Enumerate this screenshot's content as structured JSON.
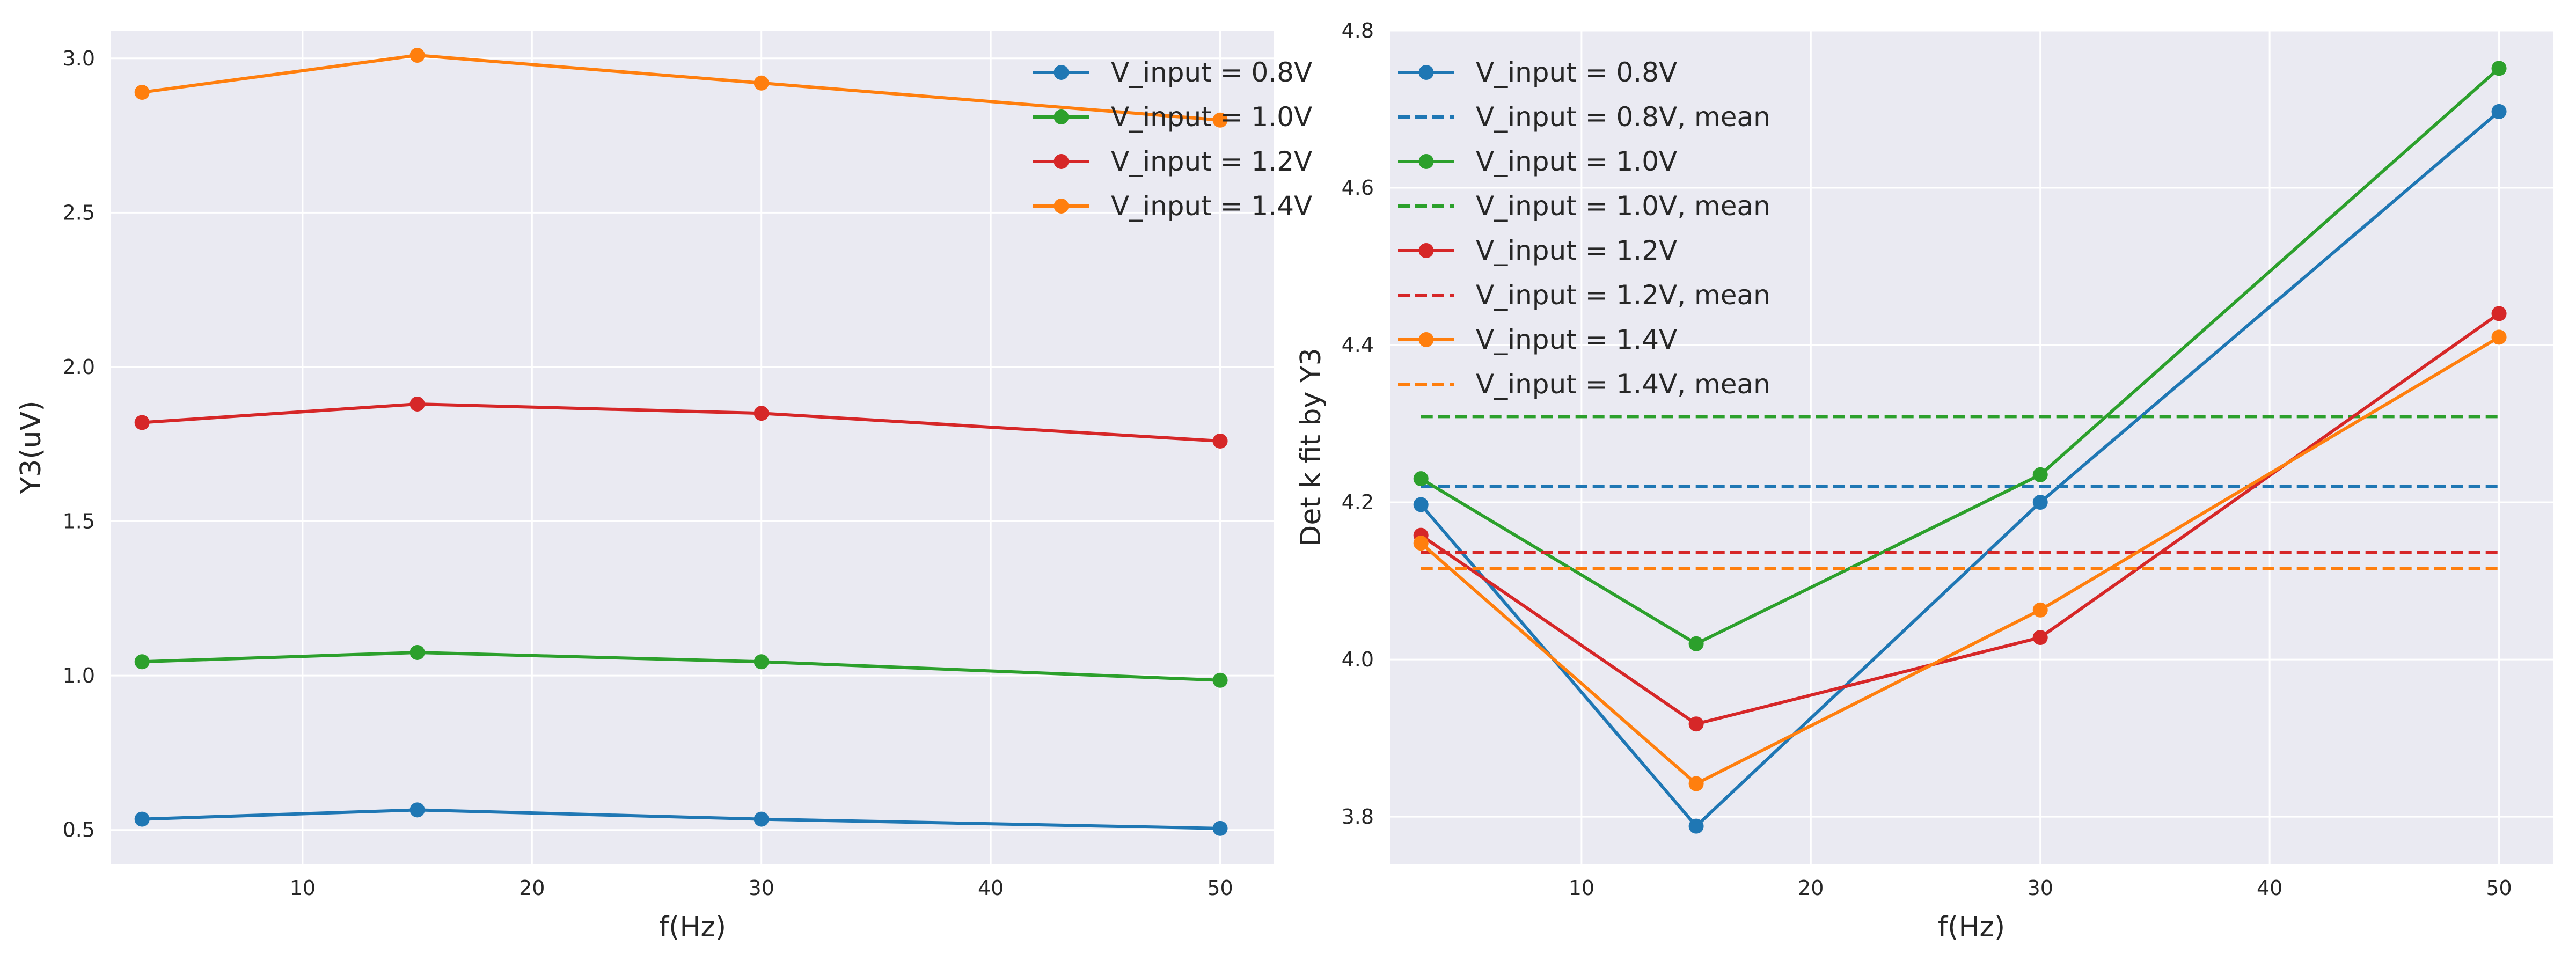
{
  "chart_data": [
    {
      "type": "line",
      "xlabel": "f(Hz)",
      "ylabel": "Y3(uV)",
      "xlim": [
        1.65,
        52.35
      ],
      "ylim": [
        0.39,
        3.09
      ],
      "xticks": [
        10,
        20,
        30,
        40,
        50
      ],
      "yticks": [
        0.5,
        1.0,
        1.5,
        2.0,
        2.5,
        3.0
      ],
      "xtick_labels": [
        "10",
        "20",
        "30",
        "40",
        "50"
      ],
      "ytick_labels": [
        "0.5",
        "1.0",
        "1.5",
        "2.0",
        "2.5",
        "3.0"
      ],
      "grid": true,
      "legend_placement": "top-right",
      "x": [
        3,
        15,
        30,
        50
      ],
      "series": [
        {
          "name": "V_input = 0.8V",
          "color": "#1f77b4",
          "style": "solid-marker",
          "values": [
            0.535,
            0.565,
            0.535,
            0.505
          ]
        },
        {
          "name": "V_input = 1.0V",
          "color": "#2ca02c",
          "style": "solid-marker",
          "values": [
            1.045,
            1.075,
            1.045,
            0.985
          ]
        },
        {
          "name": "V_input = 1.2V",
          "color": "#d62728",
          "style": "solid-marker",
          "values": [
            1.82,
            1.88,
            1.85,
            1.76
          ]
        },
        {
          "name": "V_input = 1.4V",
          "color": "#ff7f0e",
          "style": "solid-marker",
          "values": [
            2.89,
            3.01,
            2.92,
            2.8
          ]
        }
      ]
    },
    {
      "type": "line",
      "xlabel": "f(Hz)",
      "ylabel": "Det k fit by Y3",
      "xlim": [
        1.65,
        52.35
      ],
      "ylim": [
        3.74,
        4.8
      ],
      "xticks": [
        10,
        20,
        30,
        40,
        50
      ],
      "yticks": [
        3.8,
        4.0,
        4.2,
        4.4,
        4.6,
        4.8
      ],
      "xtick_labels": [
        "10",
        "20",
        "30",
        "40",
        "50"
      ],
      "ytick_labels": [
        "3.8",
        "4.0",
        "4.2",
        "4.4",
        "4.6",
        "4.8"
      ],
      "grid": true,
      "legend_placement": "top-left",
      "x": [
        3,
        15,
        30,
        50
      ],
      "series": [
        {
          "name": "V_input = 0.8V",
          "color": "#1f77b4",
          "style": "solid-marker",
          "values": [
            4.197,
            3.788,
            4.2,
            4.697
          ]
        },
        {
          "name": "V_input = 0.8V, mean",
          "color": "#1f77b4",
          "style": "dashed",
          "values": [
            4.22,
            4.22,
            4.22,
            4.22
          ]
        },
        {
          "name": "V_input = 1.0V",
          "color": "#2ca02c",
          "style": "solid-marker",
          "values": [
            4.23,
            4.02,
            4.235,
            4.752
          ]
        },
        {
          "name": "V_input = 1.0V, mean",
          "color": "#2ca02c",
          "style": "dashed",
          "values": [
            4.309,
            4.309,
            4.309,
            4.309
          ]
        },
        {
          "name": "V_input = 1.2V",
          "color": "#d62728",
          "style": "solid-marker",
          "values": [
            4.158,
            3.918,
            4.028,
            4.44
          ]
        },
        {
          "name": "V_input = 1.2V, mean",
          "color": "#d62728",
          "style": "dashed",
          "values": [
            4.136,
            4.136,
            4.136,
            4.136
          ]
        },
        {
          "name": "V_input = 1.4V",
          "color": "#ff7f0e",
          "style": "solid-marker",
          "values": [
            4.148,
            3.842,
            4.063,
            4.41
          ]
        },
        {
          "name": "V_input = 1.4V, mean",
          "color": "#ff7f0e",
          "style": "dashed",
          "values": [
            4.116,
            4.116,
            4.116,
            4.116
          ]
        }
      ]
    }
  ],
  "colors": {
    "plot_background": "#eaeaf2",
    "grid": "#ffffff",
    "text": "#262626"
  }
}
